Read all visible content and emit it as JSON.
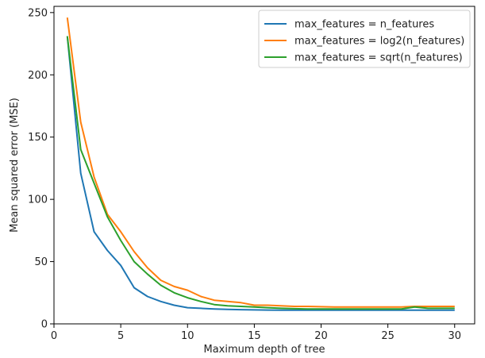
{
  "chart_data": {
    "type": "line",
    "title": "",
    "xlabel": "Maximum depth of tree",
    "ylabel": "Mean squared error (MSE)",
    "xlim": [
      0,
      31.5
    ],
    "ylim": [
      0,
      255
    ],
    "xticks": [
      0,
      5,
      10,
      15,
      20,
      25,
      30
    ],
    "yticks": [
      0,
      50,
      100,
      150,
      200,
      250
    ],
    "grid": false,
    "legend_position": "top-right",
    "series": [
      {
        "name": "max_features = n_features",
        "color": "#1f77b4",
        "x": [
          1,
          2,
          3,
          4,
          5,
          6,
          7,
          8,
          9,
          10,
          11,
          12,
          13,
          14,
          15,
          16,
          17,
          18,
          19,
          20,
          21,
          22,
          23,
          24,
          25,
          26,
          27,
          28,
          29,
          30
        ],
        "y": [
          231,
          121,
          74,
          59,
          47,
          29,
          22,
          18,
          15,
          13,
          12.5,
          12,
          11.6,
          11.4,
          11.2,
          11.1,
          11,
          11,
          11,
          11,
          11,
          11,
          11,
          11,
          11,
          11,
          11,
          11,
          11,
          11
        ]
      },
      {
        "name": "max_features = log2(n_features)",
        "color": "#ff7f0e",
        "x": [
          1,
          2,
          3,
          4,
          5,
          6,
          7,
          8,
          9,
          10,
          11,
          12,
          13,
          14,
          15,
          16,
          17,
          18,
          19,
          20,
          21,
          22,
          23,
          24,
          25,
          26,
          27,
          28,
          29,
          30
        ],
        "y": [
          246,
          162,
          118,
          88,
          74,
          58,
          45,
          35,
          30,
          27,
          22,
          19,
          18,
          17,
          15,
          15,
          14.5,
          14,
          14,
          13.8,
          13.6,
          13.5,
          13.5,
          13.5,
          13.5,
          13.5,
          14,
          14,
          14,
          14
        ]
      },
      {
        "name": "max_features = sqrt(n_features)",
        "color": "#2ca02c",
        "x": [
          1,
          2,
          3,
          4,
          5,
          6,
          7,
          8,
          9,
          10,
          11,
          12,
          13,
          14,
          15,
          16,
          17,
          18,
          19,
          20,
          21,
          22,
          23,
          24,
          25,
          26,
          27,
          28,
          29,
          30
        ],
        "y": [
          231,
          140,
          113,
          86,
          67,
          50,
          40,
          31,
          25,
          21,
          18,
          15.5,
          14.5,
          14,
          13.5,
          13,
          12.5,
          12.2,
          12,
          12,
          12,
          12,
          12,
          12,
          12,
          12,
          13.5,
          12.5,
          12.5,
          12.5
        ]
      }
    ]
  }
}
